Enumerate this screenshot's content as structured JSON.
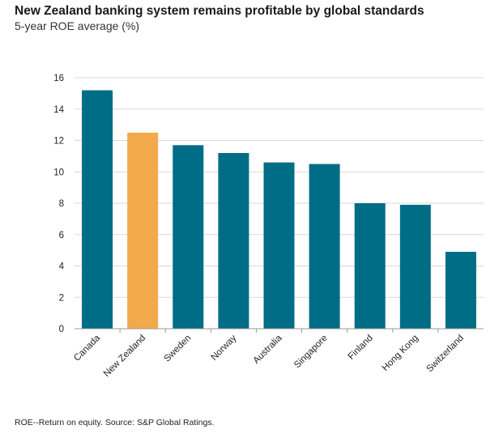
{
  "header": {
    "title": "New Zealand banking system remains profitable by global standards",
    "subtitle": "5-year ROE average (%)"
  },
  "footer": {
    "note": "ROE--Return on equity. Source: S&P Global Ratings."
  },
  "colors": {
    "default_bar": "#006d87",
    "highlight_bar": "#f2a94a",
    "gridline": "#d9d9d9",
    "axis": "#999999"
  },
  "chart_data": {
    "type": "bar",
    "title": "New Zealand banking system remains profitable by global standards",
    "subtitle": "5-year ROE average (%)",
    "categories": [
      "Canada",
      "New Zealand",
      "Sweden",
      "Norway",
      "Australia",
      "Singapore",
      "Finland",
      "Hong Kong",
      "Switzerland"
    ],
    "values": [
      15.2,
      12.5,
      11.7,
      11.2,
      10.6,
      10.5,
      8.0,
      7.9,
      4.9
    ],
    "highlight": "New Zealand",
    "ylim": [
      0,
      16
    ],
    "yticks": [
      0,
      2,
      4,
      6,
      8,
      10,
      12,
      14,
      16
    ],
    "grid": true,
    "legend": "none"
  }
}
